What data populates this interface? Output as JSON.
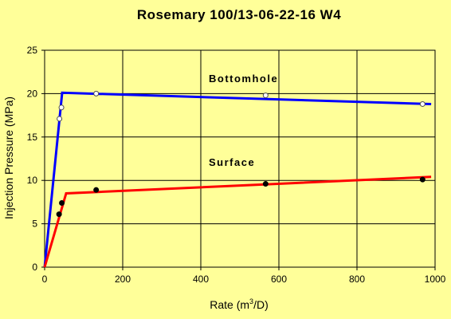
{
  "colors": {
    "background": "#ffff99",
    "plot_background": "#ffff99",
    "grid": "#000000",
    "bottomhole_line": "#0000ff",
    "surface_line": "#ff0000",
    "bottomhole_marker_stroke": "#4d4d4d",
    "surface_marker_fill": "#000000"
  },
  "chart_data": {
    "type": "scatter",
    "title": "Rosemary 100/13-06-22-16 W4",
    "xlabel_main": "Rate (m",
    "xlabel_sup": "3",
    "xlabel_end": "/D)",
    "ylabel": "Injection Pressure (MPa)",
    "xlim": [
      0,
      1000
    ],
    "ylim": [
      0,
      25
    ],
    "x_ticks": [
      0,
      200,
      400,
      600,
      800,
      1000
    ],
    "y_ticks": [
      0,
      5,
      10,
      15,
      20,
      25
    ],
    "x_tick_labels": [
      "0",
      "200",
      "400",
      "600",
      "800",
      "1000"
    ],
    "y_tick_labels": [
      "0",
      "5",
      "10",
      "15",
      "20",
      "25"
    ],
    "grid": true,
    "annotations": {
      "bottomhole": "Bottomhole",
      "surface": "Surface"
    },
    "series": [
      {
        "id": "bottomhole",
        "marker": "open-circle",
        "points": [
          {
            "x": 38,
            "y": 17.1
          },
          {
            "x": 43,
            "y": 18.4
          },
          {
            "x": 132,
            "y": 20.0
          },
          {
            "x": 566,
            "y": 19.8
          },
          {
            "x": 968,
            "y": 18.8
          }
        ],
        "fit_line": [
          {
            "x": 0,
            "y": 0
          },
          {
            "x": 45,
            "y": 20.1
          },
          {
            "x": 990,
            "y": 18.8
          }
        ]
      },
      {
        "id": "surface",
        "marker": "filled-circle",
        "points": [
          {
            "x": 37,
            "y": 6.1
          },
          {
            "x": 44,
            "y": 7.4
          },
          {
            "x": 132,
            "y": 8.9
          },
          {
            "x": 566,
            "y": 9.6
          },
          {
            "x": 968,
            "y": 10.1
          }
        ],
        "fit_line": [
          {
            "x": 0,
            "y": 0
          },
          {
            "x": 55,
            "y": 8.5
          },
          {
            "x": 990,
            "y": 10.4
          }
        ]
      }
    ]
  }
}
